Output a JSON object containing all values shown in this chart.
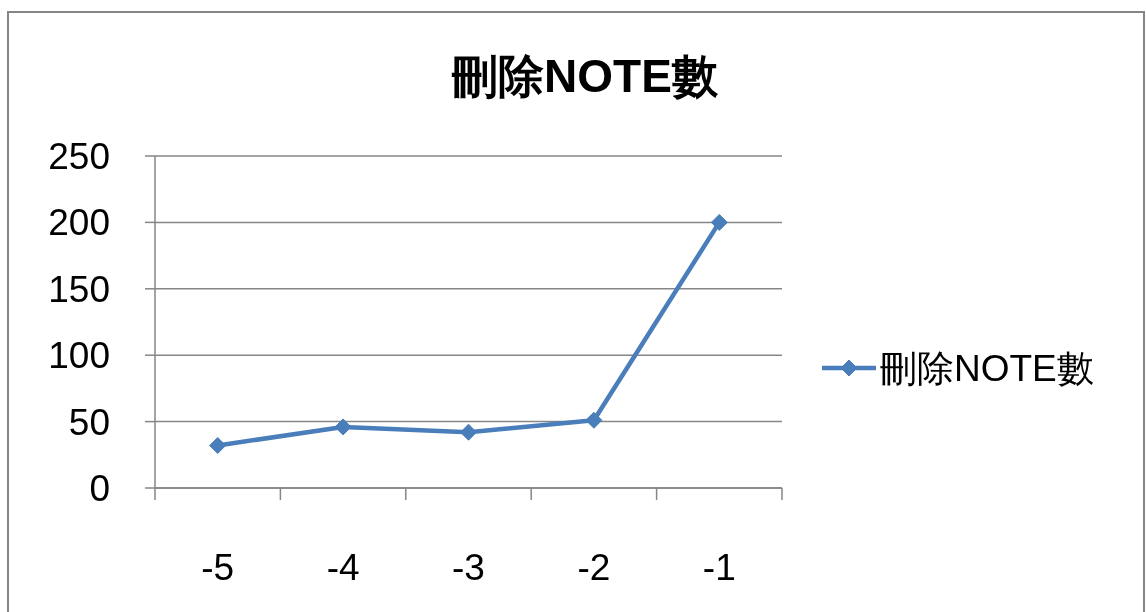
{
  "chart_data": {
    "type": "line",
    "title": "刪除NOTE數",
    "categories": [
      "-5",
      "-4",
      "-3",
      "-2",
      "-1"
    ],
    "series": [
      {
        "name": "刪除NOTE數",
        "color": "#4a7ebb",
        "values": [
          32,
          46,
          42,
          51,
          200
        ]
      }
    ],
    "ylim": [
      0,
      250
    ],
    "yticks": [
      0,
      50,
      100,
      150,
      200,
      250
    ],
    "grid": "y",
    "legend": "right",
    "marker": "diamond",
    "line_style": "solid"
  }
}
